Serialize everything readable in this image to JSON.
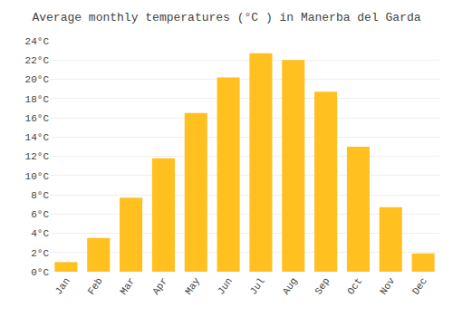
{
  "chart_data": {
    "type": "bar",
    "title": "Average monthly temperatures (°C ) in Manerba del Garda",
    "categories": [
      "Jan",
      "Feb",
      "Mar",
      "Apr",
      "May",
      "Jun",
      "Jul",
      "Aug",
      "Sep",
      "Oct",
      "Nov",
      "Dec"
    ],
    "values": [
      1.0,
      3.5,
      7.7,
      11.8,
      16.5,
      20.2,
      22.7,
      22.0,
      18.7,
      13.0,
      6.7,
      1.9
    ],
    "color": "#FFC020",
    "ylim": [
      0,
      24
    ],
    "yticks": [
      {
        "value": 0,
        "label": "0°C"
      },
      {
        "value": 2,
        "label": "2°C"
      },
      {
        "value": 4,
        "label": "4°C"
      },
      {
        "value": 6,
        "label": "6°C"
      },
      {
        "value": 8,
        "label": "8°C"
      },
      {
        "value": 10,
        "label": "10°C"
      },
      {
        "value": 12,
        "label": "12°C"
      },
      {
        "value": 14,
        "label": "14°C"
      },
      {
        "value": 16,
        "label": "16°C"
      },
      {
        "value": 18,
        "label": "18°C"
      },
      {
        "value": 20,
        "label": "20°C"
      },
      {
        "value": 22,
        "label": "22°C"
      },
      {
        "value": 24,
        "label": "24°C"
      }
    ],
    "grid": true
  }
}
